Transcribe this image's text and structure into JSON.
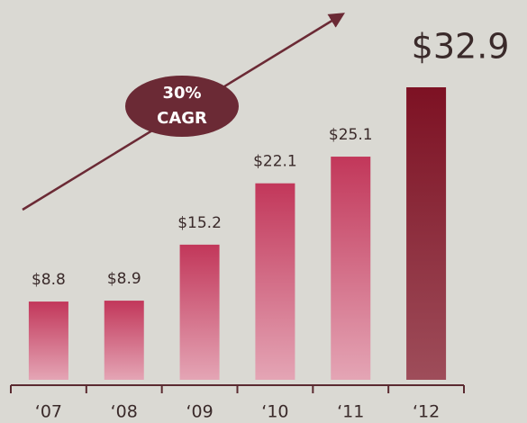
{
  "chart_data": {
    "type": "bar",
    "categories": [
      "‘07",
      "‘08",
      "‘09",
      "‘10",
      "‘11",
      "‘12"
    ],
    "values": [
      8.8,
      8.9,
      15.2,
      22.1,
      25.1,
      32.9
    ],
    "value_labels": [
      "$8.8",
      "$8.9",
      "$15.2",
      "$22.1",
      "$25.1",
      "$32.9"
    ],
    "colors": [
      "#c2375a",
      "#c2375a",
      "#c2375a",
      "#c2375a",
      "#c2375a",
      "#7d1123"
    ],
    "annotation": [
      "30%",
      "CAGR"
    ]
  }
}
